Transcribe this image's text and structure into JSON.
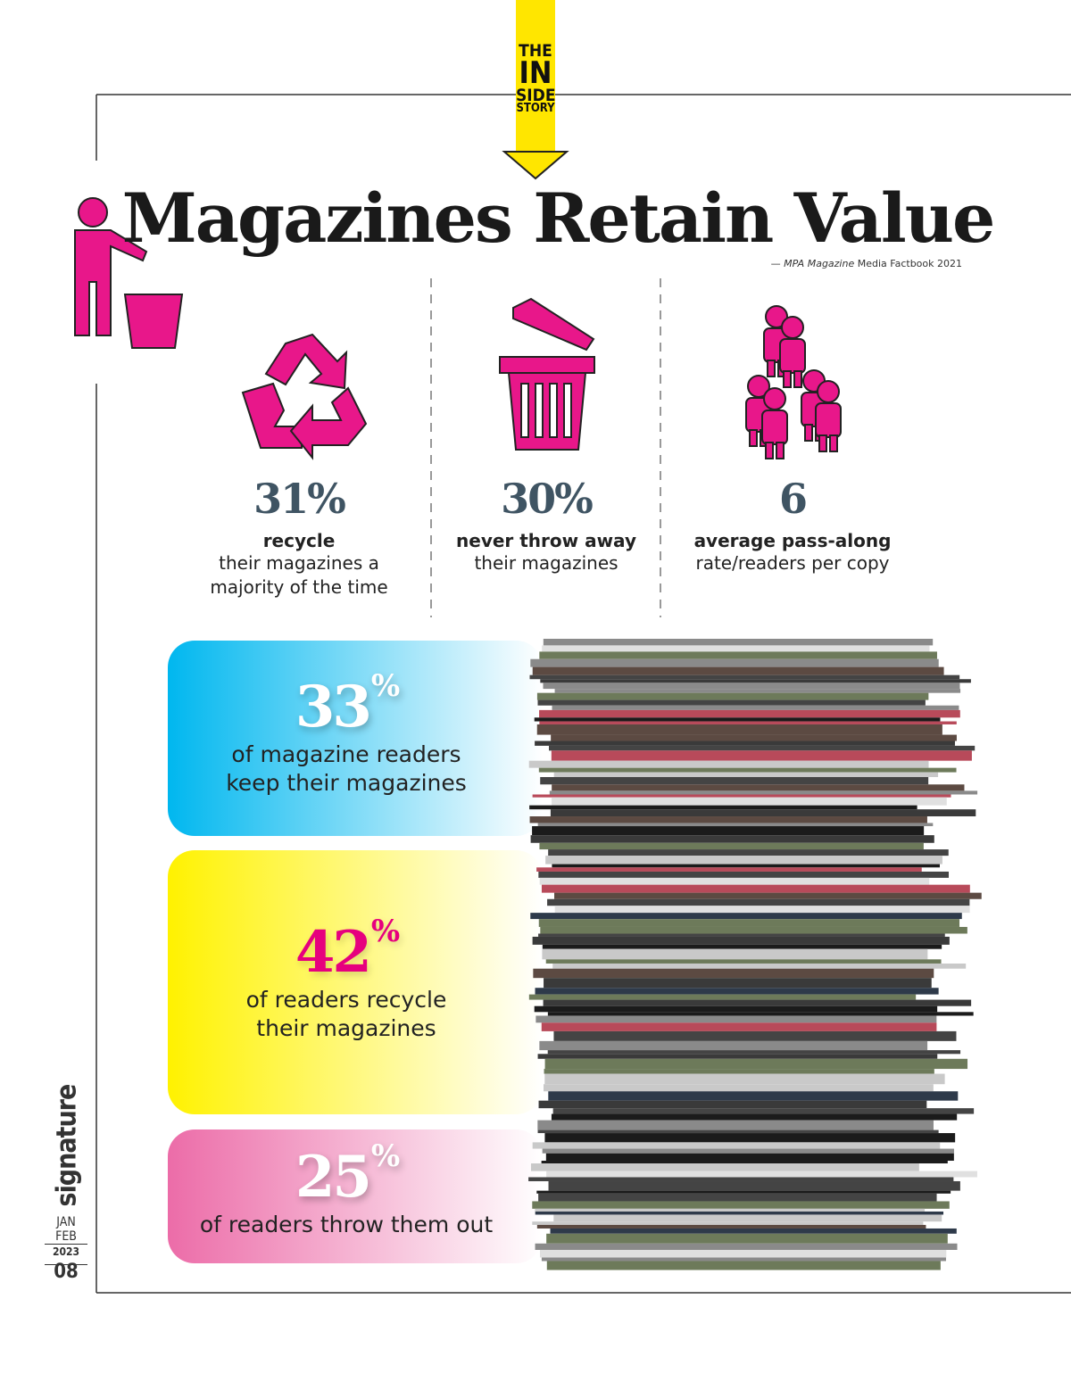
{
  "badge": {
    "lines": [
      "THE",
      "IN",
      "SIDE",
      "STORY"
    ]
  },
  "header": {
    "title": "Magazines Retain Value",
    "source": {
      "dash": "—",
      "publication": "MPA Magazine",
      "rest": "Media Factbook 2021"
    }
  },
  "stats": [
    {
      "value": "31%",
      "label": "recycle",
      "lines": [
        "their magazines a",
        "majority of the time"
      ]
    },
    {
      "value": "30%",
      "label": "never throw away",
      "lines": [
        "their magazines"
      ]
    },
    {
      "value": "6",
      "label": "average pass-along",
      "lines": [
        "rate/readers per copy"
      ]
    }
  ],
  "panels": [
    {
      "number": "33",
      "unit": "%",
      "lines": [
        "of magazine readers",
        "keep their magazines"
      ]
    },
    {
      "number": "42",
      "unit": "%",
      "lines": [
        "of readers recycle",
        "their magazines"
      ]
    },
    {
      "number": "25",
      "unit": "%",
      "lines": [
        "of readers throw them out"
      ]
    }
  ],
  "sidebar": {
    "brand": "signature",
    "month1": "JAN",
    "month2": "FEB",
    "year": "2023",
    "page": "08"
  }
}
